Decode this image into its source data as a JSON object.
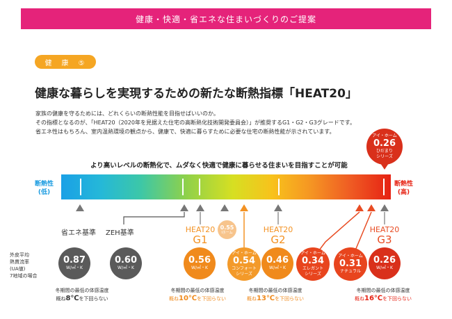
{
  "banner": "健康・快適・省エネな住まいづくりのご提案",
  "tag": "健　康　⑤",
  "title": "健康な暮らしを実現するための新たな断熱指標「HEAT20」",
  "intro": [
    "家族の健康を守るためには、どれくらいの断熱性能を目指せばいいのか。",
    "その指標となるのが、「HEAT20（2020年を見据えた住宅の高断熱化技術開発委員会）」が推奨するG1・G2・G3グレードです。",
    "省エネ性はもちろん、室内温熱環境の観点から、健康で、快適に暮らすために必要な住宅の断熱性能が示されています。"
  ],
  "headline": "より高いレベルの断熱化で、ムダなく快適で健康に暮らせる住まいを目指すことが可能",
  "scale": {
    "low_label_1": "断熱性",
    "low_label_2": "(低)",
    "high_label_1": "断熱性",
    "high_label_2": "(高)",
    "low_color": "#1a9be0",
    "high_color": "#e62213"
  },
  "callout_top": {
    "brand": "アイ・ホーム",
    "value": "0.26",
    "name_1": "ひだまり",
    "name_2": "シリーズ"
  },
  "grades": {
    "shoene": "省エネ基準",
    "zeh": "ZEH基準",
    "g1_1": "HEAT20",
    "g1_2": "G1",
    "g2_1": "HEAT20",
    "g2_2": "G2",
    "g3_1": "HEAT20",
    "g3_2": "G3"
  },
  "side_label": [
    "外皮平均",
    "熱貫流率",
    "(UA値)",
    "7地域の場合"
  ],
  "unit": "W/㎡・K",
  "mini": {
    "value": "0.55",
    "brand": "Iホーム"
  },
  "circles": [
    {
      "value": "0.87"
    },
    {
      "value": "0.60"
    },
    {
      "value": "0.56"
    },
    {
      "brand": "アイ・ホーム",
      "value": "0.54",
      "name_1": "コンフォート",
      "name_2": "シリーズ"
    },
    {
      "value": "0.46"
    },
    {
      "brand": "アイ・ホーム",
      "value": "0.34",
      "name_1": "エレガント",
      "name_2": "シリーズ"
    },
    {
      "brand": "アイ・ホーム",
      "value": "0.31",
      "name_1": "ナチュラル"
    },
    {
      "value": "0.26"
    }
  ],
  "notes": [
    {
      "line1": "冬期間の最低の体感温度",
      "pre": "概ね",
      "temp": "8℃",
      "post": "を下回らない"
    },
    {
      "line1": "冬期間の最低の体感温度",
      "pre": "概ね",
      "temp": "10℃",
      "post": "を下回らない"
    },
    {
      "line1": "冬期間の最低の体感温度",
      "pre": "概ね",
      "temp": "13℃",
      "post": "を下回らない"
    },
    {
      "line1": "冬期間の最低の体感温度",
      "pre": "概ね",
      "temp": "16℃",
      "post": "を下回らない"
    }
  ]
}
